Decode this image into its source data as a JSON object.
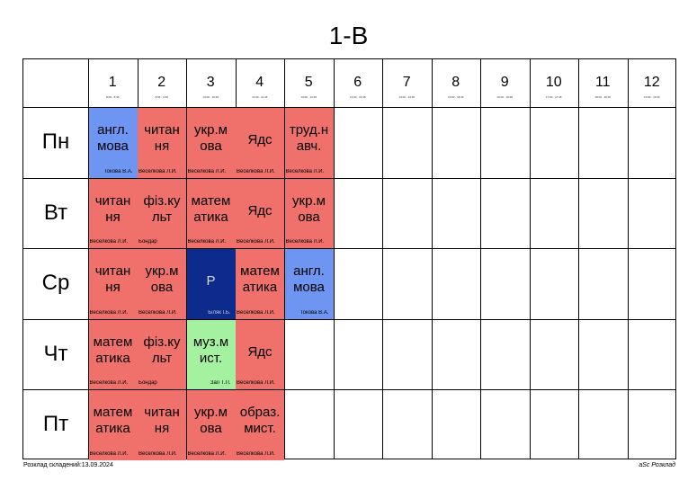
{
  "title": "1-В",
  "columns": [
    {
      "num": "1",
      "time": "8:00 - 8:45"
    },
    {
      "num": "2",
      "time": "8:55 - 9:40"
    },
    {
      "num": "3",
      "time": "10:00 - 10:45"
    },
    {
      "num": "4",
      "time": "11:00 - 11:45"
    },
    {
      "num": "5",
      "time": "12:00 - 12:45"
    },
    {
      "num": "6",
      "time": "13:00 - 13:45"
    },
    {
      "num": "7",
      "time": "14:00 - 14:45"
    },
    {
      "num": "8",
      "time": "15:00 - 15:45"
    },
    {
      "num": "9",
      "time": "16:00 - 16:45"
    },
    {
      "num": "10",
      "time": "17:00 - 17:45"
    },
    {
      "num": "11",
      "time": "18:00 - 18:45"
    },
    {
      "num": "12",
      "time": "19:00 - 19:45"
    }
  ],
  "days": [
    "Пн",
    "Вт",
    "Ср",
    "Чт",
    "Пт"
  ],
  "colors": {
    "ukr_core": "#f0716b",
    "english": "#6f95f2",
    "special": "#0d2b8c",
    "music": "#a4f2a0"
  },
  "lessons": [
    {
      "day": 0,
      "period": 0,
      "subject": "англ.\nмова",
      "teacher": "Токова В.А.",
      "color": "#6f95f2",
      "align": "right"
    },
    {
      "day": 0,
      "period": 1,
      "subject": "читан\nня",
      "teacher": "Веселкова Л.Й.",
      "color": "#f0716b",
      "align": "left"
    },
    {
      "day": 0,
      "period": 2,
      "subject": "укр.м\nова",
      "teacher": "Веселкова Л.Й.",
      "color": "#f0716b",
      "align": "left"
    },
    {
      "day": 0,
      "period": 3,
      "subject": "Ядс",
      "teacher": "Веселкова Л.Й.",
      "color": "#f0716b",
      "align": "left"
    },
    {
      "day": 0,
      "period": 4,
      "subject": "труд.н\nавч.",
      "teacher": "Веселкова Л.Й.",
      "color": "#f0716b",
      "align": "left"
    },
    {
      "day": 1,
      "period": 0,
      "subject": "читан\nня",
      "teacher": "Веселкова Л.Й.",
      "color": "#f0716b",
      "align": "left"
    },
    {
      "day": 1,
      "period": 1,
      "subject": "фіз.ку\nльт",
      "teacher": "Бондар",
      "color": "#f0716b",
      "align": "left"
    },
    {
      "day": 1,
      "period": 2,
      "subject": "матем\nатика",
      "teacher": "Веселкова Л.Й.",
      "color": "#f0716b",
      "align": "left"
    },
    {
      "day": 1,
      "period": 3,
      "subject": "Ядс",
      "teacher": "Веселкова Л.Й.",
      "color": "#f0716b",
      "align": "left"
    },
    {
      "day": 1,
      "period": 4,
      "subject": "укр.м\nова",
      "teacher": "Веселкова Л.Й.",
      "color": "#f0716b",
      "align": "left"
    },
    {
      "day": 2,
      "period": 0,
      "subject": "читан\nня",
      "teacher": "Веселкова Л.Й.",
      "color": "#f0716b",
      "align": "left"
    },
    {
      "day": 2,
      "period": 1,
      "subject": "укр.м\nова",
      "teacher": "Веселкова Л.Й.",
      "color": "#f0716b",
      "align": "left"
    },
    {
      "day": 2,
      "period": 2,
      "subject": "Р",
      "teacher": "Біляк І.Б.",
      "color": "#0d2b8c",
      "align": "right"
    },
    {
      "day": 2,
      "period": 3,
      "subject": "матем\nатика",
      "teacher": "Веселкова Л.Й.",
      "color": "#f0716b",
      "align": "left"
    },
    {
      "day": 2,
      "period": 4,
      "subject": "англ.\nмова",
      "teacher": "Токова В.А.",
      "color": "#6f95f2",
      "align": "right"
    },
    {
      "day": 3,
      "period": 0,
      "subject": "матем\nатика",
      "teacher": "Веселкова Л.Й.",
      "color": "#f0716b",
      "align": "left"
    },
    {
      "day": 3,
      "period": 1,
      "subject": "фіз.ку\nльт",
      "teacher": "Бондар",
      "color": "#f0716b",
      "align": "left"
    },
    {
      "day": 3,
      "period": 2,
      "subject": "муз.м\nист.",
      "teacher": "Заїї Т.П.",
      "color": "#a4f2a0",
      "align": "right"
    },
    {
      "day": 3,
      "period": 3,
      "subject": "Ядс",
      "teacher": "Веселкова Л.Й.",
      "color": "#f0716b",
      "align": "left"
    },
    {
      "day": 4,
      "period": 0,
      "subject": "матем\nатика",
      "teacher": "Веселкова Л.Й.",
      "color": "#f0716b",
      "align": "left"
    },
    {
      "day": 4,
      "period": 1,
      "subject": "читан\nня",
      "teacher": "Веселкова Л.Й.",
      "color": "#f0716b",
      "align": "left"
    },
    {
      "day": 4,
      "period": 2,
      "subject": "укр.м\nова",
      "teacher": "Веселкова Л.Й.",
      "color": "#f0716b",
      "align": "left"
    },
    {
      "day": 4,
      "period": 3,
      "subject": "образ.\nмист.",
      "teacher": "Веселкова Л.Й.",
      "color": "#f0716b",
      "align": "left"
    }
  ],
  "footer": {
    "left": "Розклад складений:13.09.2024",
    "right": "aSc Розклад"
  }
}
